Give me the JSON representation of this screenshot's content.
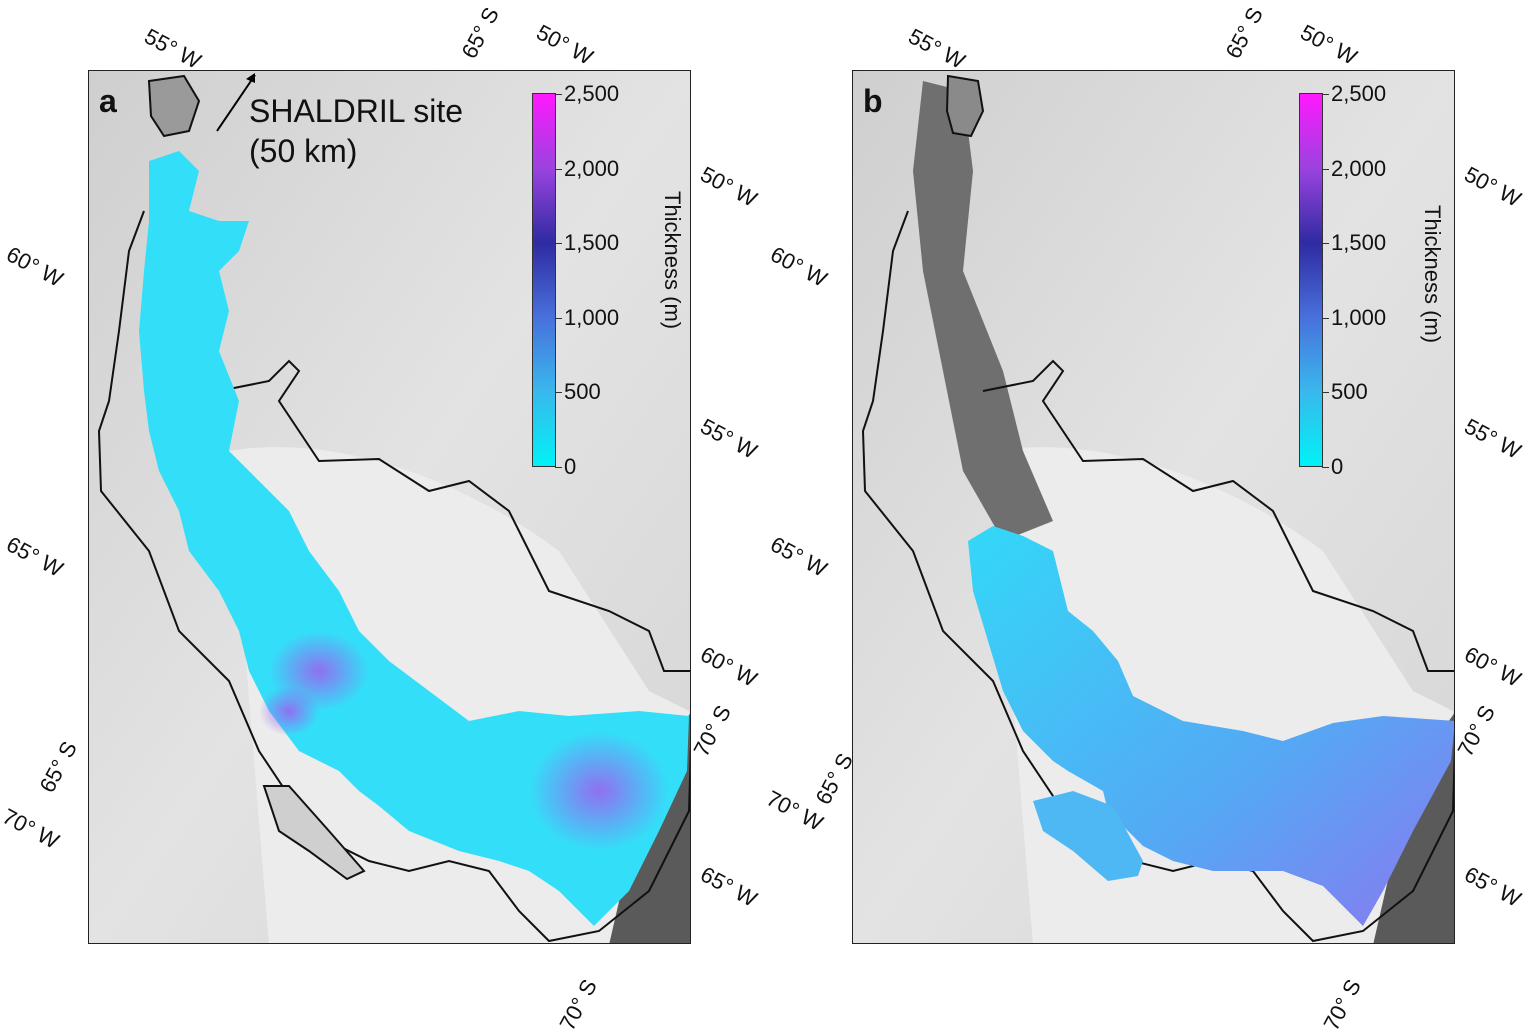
{
  "panels": [
    {
      "letter": "a",
      "annotation_line1": "SHALDRIL site",
      "annotation_line2": "(50 km)",
      "colorbar": {
        "title": "Thickness (m)",
        "ticks": [
          "2,500",
          "2,000",
          "1,500",
          "1,000",
          "500",
          "0"
        ],
        "range": [
          0,
          2500
        ],
        "colors": [
          "#00f2f6",
          "#39b8ec",
          "#4870dc",
          "#2f2ba0",
          "#9a43df",
          "#ff19ff"
        ]
      },
      "graticule_labels": {
        "top": [
          "55° W",
          "65° S",
          "50° W"
        ],
        "left": [
          "60° W",
          "65° W",
          "65° S",
          "70° W"
        ],
        "right": [
          "50° W",
          "55° W",
          "60° W",
          "70° S",
          "65° W"
        ],
        "bottom": [
          "70° S"
        ]
      }
    },
    {
      "letter": "b",
      "colorbar": {
        "title": "Thickness (m)",
        "ticks": [
          "2,500",
          "2,000",
          "1,500",
          "1,000",
          "500",
          "0"
        ],
        "range": [
          0,
          2500
        ],
        "colors": [
          "#00f2f6",
          "#39b8ec",
          "#4870dc",
          "#2f2ba0",
          "#9a43df",
          "#ff19ff"
        ]
      },
      "graticule_labels": {
        "top": [
          "55° W",
          "65° S",
          "50° W"
        ],
        "left": [
          "60° W",
          "65° W",
          "70° W",
          "65° S"
        ],
        "right": [
          "50° W",
          "55° W",
          "60° W",
          "70° S",
          "65° W"
        ],
        "bottom": [
          "70° S"
        ]
      }
    }
  ],
  "colors": {
    "ice": "#33dff8",
    "ice_thick": "#8f6ff0",
    "background": "#dcdcdc",
    "coastline": "#111111"
  }
}
